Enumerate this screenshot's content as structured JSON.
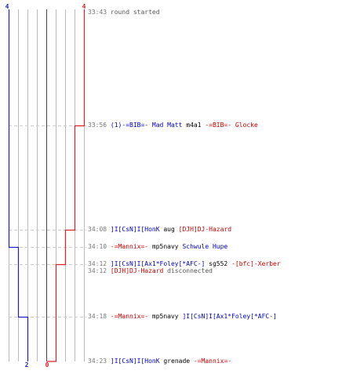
{
  "colors": {
    "blue_team": "#1f1fcf",
    "red_team": "#e02020",
    "grid": "#bbbbbb",
    "center": "#444444",
    "dashed": "#cccccc",
    "timestamp": "#777777"
  },
  "scores": {
    "blue_top": "4",
    "red_top": "4",
    "blue_bottom": "2",
    "red_bottom": "0"
  },
  "events": [
    {
      "time": "33:43",
      "parts": [
        {
          "text": "round started",
          "color": "gray"
        }
      ]
    },
    {
      "time": "33:56",
      "parts": [
        {
          "text": "(1)-=BIB=- Mad Matt",
          "color": "blue"
        },
        {
          "text": " m4a1 ",
          "color": "black"
        },
        {
          "text": "-=BIB=- Glocke",
          "color": "red"
        }
      ]
    },
    {
      "time": "34:08",
      "parts": [
        {
          "text": "]I[CsN]I[HonK",
          "color": "blue"
        },
        {
          "text": " aug ",
          "color": "black"
        },
        {
          "text": "[DJH]DJ-Hazard",
          "color": "red"
        }
      ]
    },
    {
      "time": "34:10",
      "parts": [
        {
          "text": "-=Mannix=-",
          "color": "red"
        },
        {
          "text": " mp5navy ",
          "color": "black"
        },
        {
          "text": "Schwule Hupe",
          "color": "blue"
        }
      ]
    },
    {
      "time": "34:12",
      "parts": [
        {
          "text": "]I[CsN]I[Ax1*Foley[*AFC-]",
          "color": "blue"
        },
        {
          "text": " sg552 ",
          "color": "black"
        },
        {
          "text": "-[bfc]-Xerber",
          "color": "red"
        }
      ]
    },
    {
      "time": "34:12",
      "parts": [
        {
          "text": "[DJH]DJ-Hazard",
          "color": "red"
        },
        {
          "text": " disconnected",
          "color": "gray"
        }
      ]
    },
    {
      "time": "34:18",
      "parts": [
        {
          "text": "-=Mannix=-",
          "color": "red"
        },
        {
          "text": " mp5navy ",
          "color": "black"
        },
        {
          "text": "]I[CsN]I[Ax1*Foley[*AFC-]",
          "color": "blue"
        }
      ]
    },
    {
      "time": "34:23",
      "parts": [
        {
          "text": "]I[CsN]I[HonK",
          "color": "blue"
        },
        {
          "text": " grenade ",
          "color": "black"
        },
        {
          "text": "-=Mannix=-",
          "color": "red"
        }
      ]
    }
  ]
}
